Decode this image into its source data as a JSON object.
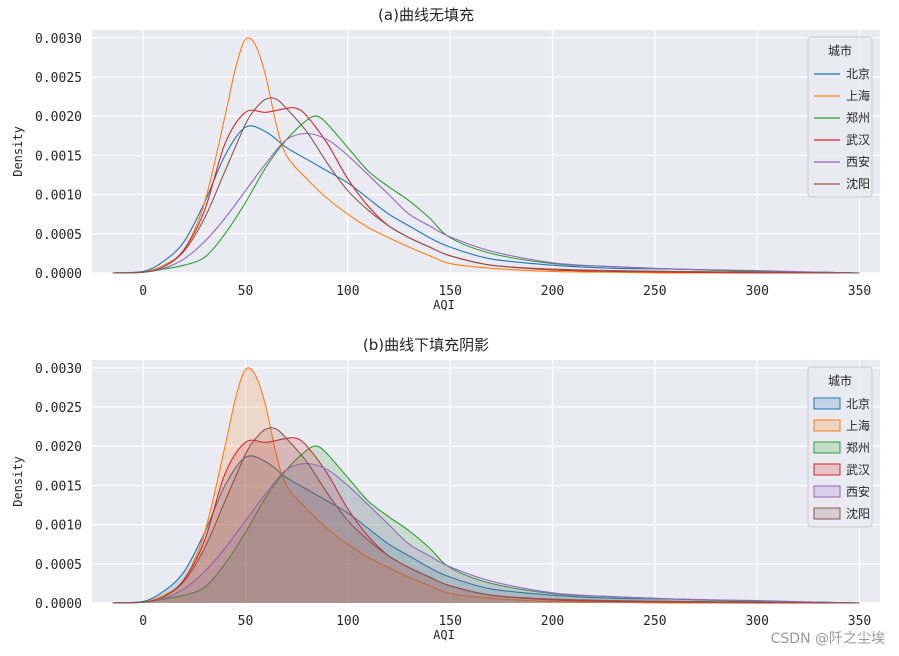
{
  "watermark": "CSDN @阡之尘埃",
  "colors": {
    "axes_bg": "#eaeaf2",
    "grid": "#ffffff",
    "series": [
      "#1f77b4",
      "#ff7f0e",
      "#2ca02c",
      "#d62728",
      "#9467bd",
      "#8c564b"
    ]
  },
  "chart_data": [
    {
      "type": "line",
      "title": "(a)曲线无填充",
      "xlabel": "AQI",
      "ylabel": "Density",
      "xlim": [
        -25,
        360
      ],
      "ylim": [
        0,
        0.0031
      ],
      "xticks": [
        "0",
        "50",
        "100",
        "150",
        "200",
        "250",
        "300",
        "350"
      ],
      "yticks": [
        "0.0000",
        "0.0005",
        "0.0010",
        "0.0015",
        "0.0020",
        "0.0025",
        "0.0030"
      ],
      "grid": true,
      "fill": false,
      "legend": {
        "title": "城市",
        "position": "top-right",
        "style": "line"
      },
      "series": [
        {
          "name": "北京",
          "x": [
            -15,
            0,
            10,
            20,
            30,
            40,
            50,
            60,
            70,
            80,
            90,
            100,
            110,
            120,
            130,
            140,
            150,
            170,
            200,
            230,
            260,
            300,
            330,
            350
          ],
          "y": [
            0,
            2e-05,
            0.00015,
            0.0004,
            0.0009,
            0.0015,
            0.00186,
            0.0018,
            0.0016,
            0.00145,
            0.0013,
            0.00115,
            0.00095,
            0.00075,
            0.0006,
            0.00045,
            0.00033,
            0.00018,
            0.0001,
            6e-05,
            5e-05,
            2e-05,
            1e-05,
            0
          ]
        },
        {
          "name": "上海",
          "x": [
            -15,
            0,
            10,
            20,
            30,
            40,
            45,
            50,
            55,
            60,
            65,
            70,
            80,
            90,
            100,
            110,
            120,
            130,
            140,
            150,
            170,
            200,
            230,
            260,
            300,
            330,
            350
          ],
          "y": [
            0,
            1e-05,
            0.0001,
            0.0003,
            0.0009,
            0.002,
            0.0026,
            0.00298,
            0.0029,
            0.0025,
            0.0019,
            0.0015,
            0.0012,
            0.00095,
            0.00075,
            0.00058,
            0.00045,
            0.00033,
            0.00022,
            0.00012,
            6e-05,
            2e-05,
            1e-05,
            0,
            0,
            0,
            0
          ]
        },
        {
          "name": "郑州",
          "x": [
            -15,
            0,
            10,
            20,
            30,
            40,
            50,
            60,
            70,
            80,
            85,
            90,
            100,
            110,
            120,
            130,
            140,
            150,
            170,
            200,
            230,
            260,
            300,
            330,
            350
          ],
          "y": [
            0,
            1e-05,
            5e-05,
            0.0001,
            0.0002,
            0.0005,
            0.0009,
            0.00135,
            0.0017,
            0.00195,
            0.002,
            0.0019,
            0.0016,
            0.0013,
            0.0011,
            0.00092,
            0.0007,
            0.00045,
            0.00025,
            0.00012,
            8e-05,
            5e-05,
            2e-05,
            1e-05,
            0
          ]
        },
        {
          "name": "武汉",
          "x": [
            -15,
            0,
            10,
            20,
            30,
            40,
            50,
            60,
            70,
            75,
            80,
            90,
            100,
            110,
            120,
            130,
            140,
            150,
            170,
            200,
            230,
            260,
            300,
            350
          ],
          "y": [
            0,
            1e-05,
            8e-05,
            0.0003,
            0.0008,
            0.00165,
            0.00205,
            0.00205,
            0.0021,
            0.0021,
            0.002,
            0.00165,
            0.0012,
            0.00085,
            0.0006,
            0.00045,
            0.00033,
            0.00022,
            0.0001,
            4e-05,
            2e-05,
            1e-05,
            0,
            0
          ]
        },
        {
          "name": "西安",
          "x": [
            -15,
            0,
            10,
            20,
            30,
            40,
            50,
            60,
            70,
            80,
            90,
            100,
            110,
            120,
            130,
            140,
            150,
            170,
            200,
            230,
            260,
            300,
            330,
            350
          ],
          "y": [
            0,
            1e-05,
            6e-05,
            0.00018,
            0.0004,
            0.0007,
            0.00105,
            0.0014,
            0.0017,
            0.00178,
            0.0017,
            0.0015,
            0.00125,
            0.001,
            0.00075,
            0.0006,
            0.00046,
            0.00028,
            0.00013,
            8e-05,
            5e-05,
            3e-05,
            1e-05,
            0
          ]
        },
        {
          "name": "沈阳",
          "x": [
            -15,
            0,
            10,
            20,
            30,
            40,
            50,
            55,
            60,
            65,
            70,
            80,
            90,
            100,
            110,
            120,
            130,
            140,
            150,
            170,
            200,
            230,
            260,
            300,
            350
          ],
          "y": [
            0,
            1e-05,
            8e-05,
            0.00028,
            0.0007,
            0.0013,
            0.0019,
            0.0021,
            0.00222,
            0.00222,
            0.0021,
            0.0018,
            0.0014,
            0.00105,
            0.0008,
            0.0006,
            0.00045,
            0.00033,
            0.00022,
            0.0001,
            5e-05,
            3e-05,
            2e-05,
            1e-05,
            0
          ]
        }
      ]
    },
    {
      "type": "area",
      "title": "(b)曲线下填充阴影",
      "xlabel": "AQI",
      "ylabel": "Density",
      "xlim": [
        -25,
        360
      ],
      "ylim": [
        0,
        0.0031
      ],
      "xticks": [
        "0",
        "50",
        "100",
        "150",
        "200",
        "250",
        "300",
        "350"
      ],
      "yticks": [
        "0.0000",
        "0.0005",
        "0.0010",
        "0.0015",
        "0.0020",
        "0.0025",
        "0.0030"
      ],
      "grid": true,
      "fill": true,
      "legend": {
        "title": "城市",
        "position": "top-right",
        "style": "patch"
      },
      "series": [
        {
          "name": "北京",
          "x": [
            -15,
            0,
            10,
            20,
            30,
            40,
            50,
            60,
            70,
            80,
            90,
            100,
            110,
            120,
            130,
            140,
            150,
            170,
            200,
            230,
            260,
            300,
            330,
            350
          ],
          "y": [
            0,
            2e-05,
            0.00015,
            0.0004,
            0.0009,
            0.0015,
            0.00186,
            0.0018,
            0.0016,
            0.00145,
            0.0013,
            0.00115,
            0.00095,
            0.00075,
            0.0006,
            0.00045,
            0.00033,
            0.00018,
            0.0001,
            6e-05,
            5e-05,
            2e-05,
            1e-05,
            0
          ]
        },
        {
          "name": "上海",
          "x": [
            -15,
            0,
            10,
            20,
            30,
            40,
            45,
            50,
            55,
            60,
            65,
            70,
            80,
            90,
            100,
            110,
            120,
            130,
            140,
            150,
            170,
            200,
            230,
            260,
            300,
            330,
            350
          ],
          "y": [
            0,
            1e-05,
            0.0001,
            0.0003,
            0.0009,
            0.002,
            0.0026,
            0.00298,
            0.0029,
            0.0025,
            0.0019,
            0.0015,
            0.0012,
            0.00095,
            0.00075,
            0.00058,
            0.00045,
            0.00033,
            0.00022,
            0.00012,
            6e-05,
            2e-05,
            1e-05,
            0,
            0,
            0,
            0
          ]
        },
        {
          "name": "郑州",
          "x": [
            -15,
            0,
            10,
            20,
            30,
            40,
            50,
            60,
            70,
            80,
            85,
            90,
            100,
            110,
            120,
            130,
            140,
            150,
            170,
            200,
            230,
            260,
            300,
            330,
            350
          ],
          "y": [
            0,
            1e-05,
            5e-05,
            0.0001,
            0.0002,
            0.0005,
            0.0009,
            0.00135,
            0.0017,
            0.00195,
            0.002,
            0.0019,
            0.0016,
            0.0013,
            0.0011,
            0.00092,
            0.0007,
            0.00045,
            0.00025,
            0.00012,
            8e-05,
            5e-05,
            2e-05,
            1e-05,
            0
          ]
        },
        {
          "name": "武汉",
          "x": [
            -15,
            0,
            10,
            20,
            30,
            40,
            50,
            60,
            70,
            75,
            80,
            90,
            100,
            110,
            120,
            130,
            140,
            150,
            170,
            200,
            230,
            260,
            300,
            350
          ],
          "y": [
            0,
            1e-05,
            8e-05,
            0.0003,
            0.0008,
            0.00165,
            0.00205,
            0.00205,
            0.0021,
            0.0021,
            0.002,
            0.00165,
            0.0012,
            0.00085,
            0.0006,
            0.00045,
            0.00033,
            0.00022,
            0.0001,
            4e-05,
            2e-05,
            1e-05,
            0,
            0
          ]
        },
        {
          "name": "西安",
          "x": [
            -15,
            0,
            10,
            20,
            30,
            40,
            50,
            60,
            70,
            80,
            90,
            100,
            110,
            120,
            130,
            140,
            150,
            170,
            200,
            230,
            260,
            300,
            330,
            350
          ],
          "y": [
            0,
            1e-05,
            6e-05,
            0.00018,
            0.0004,
            0.0007,
            0.00105,
            0.0014,
            0.0017,
            0.00178,
            0.0017,
            0.0015,
            0.00125,
            0.001,
            0.00075,
            0.0006,
            0.00046,
            0.00028,
            0.00013,
            8e-05,
            5e-05,
            3e-05,
            1e-05,
            0
          ]
        },
        {
          "name": "沈阳",
          "x": [
            -15,
            0,
            10,
            20,
            30,
            40,
            50,
            55,
            60,
            65,
            70,
            80,
            90,
            100,
            110,
            120,
            130,
            140,
            150,
            170,
            200,
            230,
            260,
            300,
            350
          ],
          "y": [
            0,
            1e-05,
            8e-05,
            0.00028,
            0.0007,
            0.0013,
            0.0019,
            0.0021,
            0.00222,
            0.00222,
            0.0021,
            0.0018,
            0.0014,
            0.00105,
            0.0008,
            0.0006,
            0.00045,
            0.00033,
            0.00022,
            0.0001,
            5e-05,
            3e-05,
            2e-05,
            1e-05,
            0
          ]
        }
      ]
    }
  ]
}
